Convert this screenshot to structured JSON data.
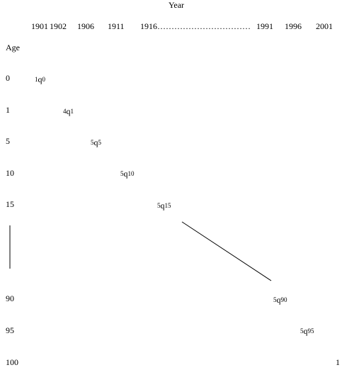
{
  "header": {
    "title": "Year",
    "years": [
      "1901",
      "1902",
      "1906",
      "1911",
      "1916……………………………",
      "1991",
      "1996",
      "2001"
    ]
  },
  "axis": {
    "title": "Age",
    "ages": [
      "0",
      "1",
      "5",
      "10",
      "15",
      "90",
      "95",
      "100"
    ]
  },
  "cells": [
    {
      "pre": "1",
      "sym": "q",
      "sub": "0"
    },
    {
      "pre": "4",
      "sym": "q",
      "sub": "1"
    },
    {
      "pre": "5",
      "sym": "q",
      "sub": "5"
    },
    {
      "pre": "5",
      "sym": "q",
      "sub": "10"
    },
    {
      "pre": "5",
      "sym": "q",
      "sub": "15"
    },
    {
      "pre": "5",
      "sym": "q",
      "sub": "90"
    },
    {
      "pre": "5",
      "sym": "q",
      "sub": "95"
    },
    {
      "pre": "1"
    }
  ]
}
